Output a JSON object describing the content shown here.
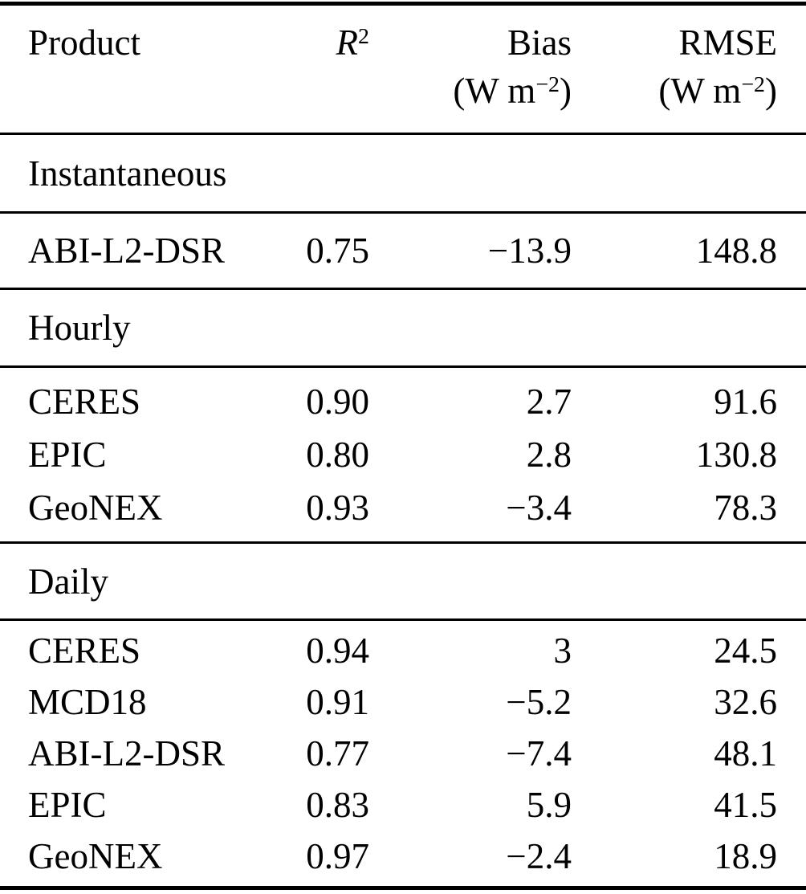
{
  "table": {
    "header": {
      "product": "Product",
      "r2": {
        "base": "R",
        "sup": "2"
      },
      "bias": {
        "label": "Bias",
        "unit_open": "(W m",
        "unit_sup": "−2",
        "unit_close": ")"
      },
      "rmse": {
        "label": "RMSE",
        "unit_open": "(W m",
        "unit_sup": "−2",
        "unit_close": ")"
      }
    },
    "sections": [
      {
        "title": "Instantaneous",
        "rows": [
          {
            "product": "ABI-L2-DSR",
            "r2": "0.75",
            "bias": "−13.9",
            "rmse": "148.8"
          }
        ]
      },
      {
        "title": "Hourly",
        "rows": [
          {
            "product": "CERES",
            "r2": "0.90",
            "bias": "2.7",
            "rmse": "91.6"
          },
          {
            "product": "EPIC",
            "r2": "0.80",
            "bias": "2.8",
            "rmse": "130.8"
          },
          {
            "product": "GeoNEX",
            "r2": "0.93",
            "bias": "−3.4",
            "rmse": "78.3"
          }
        ]
      },
      {
        "title": "Daily",
        "rows": [
          {
            "product": "CERES",
            "r2": "0.94",
            "bias": "3",
            "rmse": "24.5"
          },
          {
            "product": "MCD18",
            "r2": "0.91",
            "bias": "−5.2",
            "rmse": "32.6"
          },
          {
            "product": "ABI-L2-DSR",
            "r2": "0.77",
            "bias": "−7.4",
            "rmse": "48.1"
          },
          {
            "product": "EPIC",
            "r2": "0.83",
            "bias": "5.9",
            "rmse": "41.5"
          },
          {
            "product": "GeoNEX",
            "r2": "0.97",
            "bias": "−2.4",
            "rmse": "18.9"
          }
        ]
      }
    ]
  }
}
